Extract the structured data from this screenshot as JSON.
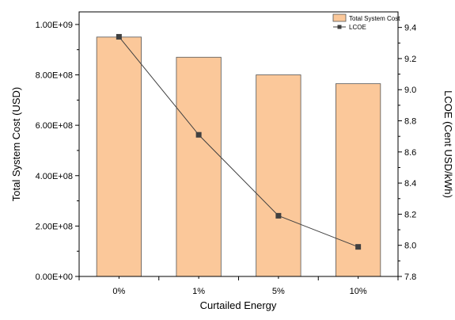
{
  "chart_data": {
    "type": "bar+line",
    "categories": [
      "0%",
      "1%",
      "5%",
      "10%"
    ],
    "xlabel": "Curtailed Energy",
    "series": [
      {
        "name": "Total System Cost",
        "type": "bar",
        "axis": "left",
        "values": [
          950000000,
          870000000,
          800000000,
          765000000
        ],
        "color": "#fbc89a",
        "edge_color": "#555555"
      },
      {
        "name": "LCOE",
        "type": "line",
        "axis": "right",
        "values": [
          9.34,
          8.71,
          8.19,
          7.99
        ],
        "color": "#404040",
        "marker": "square"
      }
    ],
    "y_left": {
      "label": "Total System Cost (USD)",
      "ylim": [
        0,
        1050000000
      ],
      "ticks": [
        0,
        200000000,
        400000000,
        600000000,
        800000000,
        1000000000
      ],
      "tick_labels": [
        "0.00E+00",
        "2.00E+08",
        "4.00E+08",
        "6.00E+08",
        "8.00E+08",
        "1.00E+09"
      ]
    },
    "y_right": {
      "label": "LCOE (Cent USD/kWh)",
      "ylim": [
        7.8,
        9.5
      ],
      "ticks": [
        7.8,
        8.0,
        8.2,
        8.4,
        8.6,
        8.8,
        9.0,
        9.2,
        9.4
      ],
      "tick_labels": [
        "7.8",
        "8.0",
        "8.2",
        "8.4",
        "8.6",
        "8.8",
        "9.0",
        "9.2",
        "9.4"
      ]
    },
    "legend_position": "top-right",
    "grid": false
  }
}
